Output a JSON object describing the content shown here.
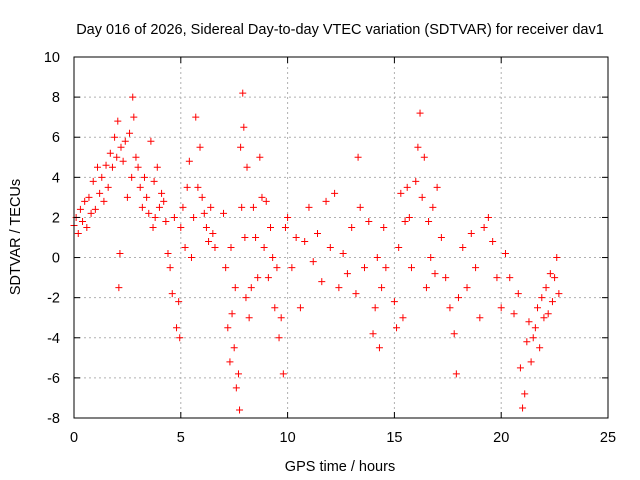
{
  "chart_data": {
    "type": "scatter",
    "title": "Day 016 of 2026, Sidereal Day-to-day VTEC variation (SDTVAR) for receiver dav1",
    "xlabel": "GPS time / hours",
    "ylabel": "SDTVAR / TECUs",
    "xlim": [
      0,
      25
    ],
    "ylim": [
      -8,
      10
    ],
    "x_ticks": [
      0,
      5,
      10,
      15,
      20,
      25
    ],
    "y_ticks": [
      -8,
      -6,
      -4,
      -2,
      0,
      2,
      4,
      6,
      8,
      10
    ],
    "grid": true,
    "marker": "+",
    "colors": {
      "series": "#ff0000",
      "grid": "#b0b0b0",
      "axis": "#000000"
    },
    "series": [
      {
        "name": "SDTVAR",
        "points": [
          [
            0.0,
            1.6
          ],
          [
            0.1,
            2.0
          ],
          [
            0.2,
            1.2
          ],
          [
            0.3,
            2.4
          ],
          [
            0.4,
            1.8
          ],
          [
            0.5,
            2.8
          ],
          [
            0.6,
            1.5
          ],
          [
            0.7,
            3.0
          ],
          [
            0.8,
            2.2
          ],
          [
            0.9,
            3.8
          ],
          [
            1.0,
            2.4
          ],
          [
            1.1,
            4.5
          ],
          [
            1.2,
            3.2
          ],
          [
            1.3,
            4.0
          ],
          [
            1.4,
            2.8
          ],
          [
            1.5,
            4.6
          ],
          [
            1.6,
            3.5
          ],
          [
            1.7,
            5.2
          ],
          [
            1.8,
            4.5
          ],
          [
            1.9,
            6.0
          ],
          [
            2.0,
            5.0
          ],
          [
            2.05,
            6.8
          ],
          [
            2.1,
            -1.5
          ],
          [
            2.15,
            0.2
          ],
          [
            2.2,
            5.5
          ],
          [
            2.3,
            4.8
          ],
          [
            2.4,
            5.8
          ],
          [
            2.5,
            3.0
          ],
          [
            2.6,
            6.2
          ],
          [
            2.7,
            4.0
          ],
          [
            2.75,
            8.0
          ],
          [
            2.8,
            7.0
          ],
          [
            2.9,
            5.0
          ],
          [
            3.0,
            4.5
          ],
          [
            3.1,
            3.5
          ],
          [
            3.2,
            2.5
          ],
          [
            3.3,
            4.0
          ],
          [
            3.4,
            3.0
          ],
          [
            3.5,
            2.2
          ],
          [
            3.6,
            5.8
          ],
          [
            3.7,
            1.5
          ],
          [
            3.75,
            3.8
          ],
          [
            3.8,
            2.0
          ],
          [
            3.9,
            4.5
          ],
          [
            4.0,
            2.5
          ],
          [
            4.1,
            3.2
          ],
          [
            4.2,
            2.8
          ],
          [
            4.3,
            1.8
          ],
          [
            4.4,
            0.2
          ],
          [
            4.5,
            -0.5
          ],
          [
            4.6,
            -1.8
          ],
          [
            4.7,
            2.0
          ],
          [
            4.8,
            -3.5
          ],
          [
            4.9,
            -2.2
          ],
          [
            4.95,
            -4.0
          ],
          [
            5.0,
            1.5
          ],
          [
            5.1,
            2.5
          ],
          [
            5.2,
            0.5
          ],
          [
            5.3,
            3.5
          ],
          [
            5.4,
            4.8
          ],
          [
            5.5,
            0.0
          ],
          [
            5.6,
            2.0
          ],
          [
            5.7,
            7.0
          ],
          [
            5.8,
            3.5
          ],
          [
            5.9,
            5.5
          ],
          [
            6.0,
            3.0
          ],
          [
            6.1,
            2.2
          ],
          [
            6.2,
            1.5
          ],
          [
            6.3,
            0.8
          ],
          [
            6.4,
            2.5
          ],
          [
            6.5,
            1.2
          ],
          [
            6.6,
            0.5
          ],
          [
            7.0,
            2.2
          ],
          [
            7.1,
            -0.5
          ],
          [
            7.2,
            -3.5
          ],
          [
            7.3,
            -5.2
          ],
          [
            7.35,
            0.5
          ],
          [
            7.4,
            -2.8
          ],
          [
            7.5,
            -4.5
          ],
          [
            7.55,
            -1.5
          ],
          [
            7.6,
            -6.5
          ],
          [
            7.7,
            -5.8
          ],
          [
            7.75,
            -7.6
          ],
          [
            7.8,
            5.5
          ],
          [
            7.85,
            2.5
          ],
          [
            7.9,
            8.2
          ],
          [
            7.95,
            6.5
          ],
          [
            8.0,
            1.0
          ],
          [
            8.05,
            -2.0
          ],
          [
            8.1,
            4.5
          ],
          [
            8.2,
            -3.0
          ],
          [
            8.3,
            -1.5
          ],
          [
            8.4,
            2.5
          ],
          [
            8.5,
            1.0
          ],
          [
            8.6,
            -1.0
          ],
          [
            8.7,
            5.0
          ],
          [
            8.8,
            3.0
          ],
          [
            8.9,
            0.5
          ],
          [
            9.0,
            2.8
          ],
          [
            9.1,
            -1.0
          ],
          [
            9.2,
            1.5
          ],
          [
            9.3,
            0.0
          ],
          [
            9.4,
            -2.5
          ],
          [
            9.5,
            -0.5
          ],
          [
            9.6,
            -4.0
          ],
          [
            9.7,
            -3.0
          ],
          [
            9.8,
            -5.8
          ],
          [
            9.9,
            1.5
          ],
          [
            10.0,
            2.0
          ],
          [
            10.2,
            -0.5
          ],
          [
            10.4,
            1.0
          ],
          [
            10.6,
            -2.5
          ],
          [
            10.8,
            0.8
          ],
          [
            11.0,
            2.5
          ],
          [
            11.2,
            -0.2
          ],
          [
            11.4,
            1.2
          ],
          [
            11.6,
            -1.2
          ],
          [
            11.8,
            2.8
          ],
          [
            12.0,
            0.5
          ],
          [
            12.2,
            3.2
          ],
          [
            12.4,
            -1.5
          ],
          [
            12.6,
            0.2
          ],
          [
            12.8,
            -0.8
          ],
          [
            13.0,
            1.5
          ],
          [
            13.2,
            -1.8
          ],
          [
            13.3,
            5.0
          ],
          [
            13.4,
            2.5
          ],
          [
            13.6,
            -0.5
          ],
          [
            13.8,
            1.8
          ],
          [
            14.0,
            -3.8
          ],
          [
            14.1,
            -2.5
          ],
          [
            14.2,
            0.0
          ],
          [
            14.3,
            -4.5
          ],
          [
            14.4,
            -1.5
          ],
          [
            14.5,
            1.5
          ],
          [
            14.6,
            -0.5
          ],
          [
            15.0,
            -2.2
          ],
          [
            15.1,
            -3.5
          ],
          [
            15.2,
            0.5
          ],
          [
            15.3,
            3.2
          ],
          [
            15.4,
            -3.0
          ],
          [
            15.5,
            1.8
          ],
          [
            15.6,
            3.5
          ],
          [
            15.7,
            2.0
          ],
          [
            15.8,
            -0.5
          ],
          [
            16.0,
            3.8
          ],
          [
            16.1,
            5.5
          ],
          [
            16.2,
            7.2
          ],
          [
            16.3,
            3.0
          ],
          [
            16.4,
            5.0
          ],
          [
            16.5,
            -1.5
          ],
          [
            16.6,
            1.8
          ],
          [
            16.7,
            0.0
          ],
          [
            16.8,
            2.5
          ],
          [
            16.9,
            -0.8
          ],
          [
            17.0,
            3.5
          ],
          [
            17.2,
            1.0
          ],
          [
            17.4,
            -1.0
          ],
          [
            17.6,
            -2.5
          ],
          [
            17.8,
            -3.8
          ],
          [
            17.9,
            -5.8
          ],
          [
            18.0,
            -2.0
          ],
          [
            18.2,
            0.5
          ],
          [
            18.4,
            -1.5
          ],
          [
            18.6,
            1.2
          ],
          [
            18.8,
            -0.5
          ],
          [
            19.0,
            -3.0
          ],
          [
            19.2,
            1.5
          ],
          [
            19.4,
            2.0
          ],
          [
            19.6,
            0.8
          ],
          [
            19.8,
            -1.0
          ],
          [
            20.0,
            -2.5
          ],
          [
            20.2,
            0.2
          ],
          [
            20.4,
            -1.0
          ],
          [
            20.6,
            -2.8
          ],
          [
            20.8,
            -1.8
          ],
          [
            20.9,
            -5.5
          ],
          [
            21.0,
            -7.5
          ],
          [
            21.1,
            -6.8
          ],
          [
            21.2,
            -4.2
          ],
          [
            21.3,
            -3.2
          ],
          [
            21.4,
            -5.2
          ],
          [
            21.5,
            -4.0
          ],
          [
            21.6,
            -3.5
          ],
          [
            21.7,
            -2.5
          ],
          [
            21.8,
            -4.5
          ],
          [
            21.9,
            -2.0
          ],
          [
            22.0,
            -3.0
          ],
          [
            22.1,
            -1.5
          ],
          [
            22.2,
            -2.8
          ],
          [
            22.3,
            -0.8
          ],
          [
            22.4,
            -2.2
          ],
          [
            22.5,
            -1.0
          ],
          [
            22.6,
            0.0
          ],
          [
            22.7,
            -1.8
          ]
        ]
      }
    ]
  }
}
